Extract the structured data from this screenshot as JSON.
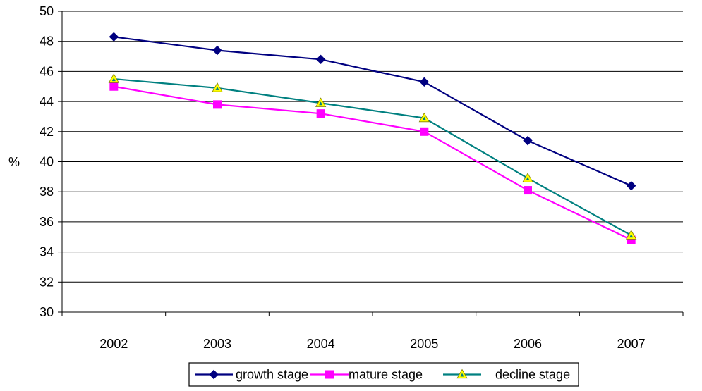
{
  "chart_data": {
    "type": "line",
    "title": "",
    "xlabel": "",
    "ylabel": "%",
    "categories": [
      "2002",
      "2003",
      "2004",
      "2005",
      "2006",
      "2007"
    ],
    "ylim": [
      30,
      50
    ],
    "yticks": [
      30,
      32,
      34,
      36,
      38,
      40,
      42,
      44,
      46,
      48,
      50
    ],
    "grid": "horizontal",
    "legend_position": "bottom",
    "series": [
      {
        "name": "growth stage",
        "values": [
          48.3,
          47.4,
          46.8,
          45.3,
          41.4,
          38.4
        ],
        "color": "#000080",
        "marker": "diamond"
      },
      {
        "name": "mature stage",
        "values": [
          45.0,
          43.8,
          43.2,
          42.0,
          38.1,
          34.8
        ],
        "color": "#ff00ff",
        "marker": "square"
      },
      {
        "name": "decline stage",
        "values": [
          45.5,
          44.9,
          43.9,
          42.9,
          38.9,
          35.1
        ],
        "color": "#008080",
        "marker": "triangle",
        "marker_fill": "#ffff00"
      }
    ]
  }
}
